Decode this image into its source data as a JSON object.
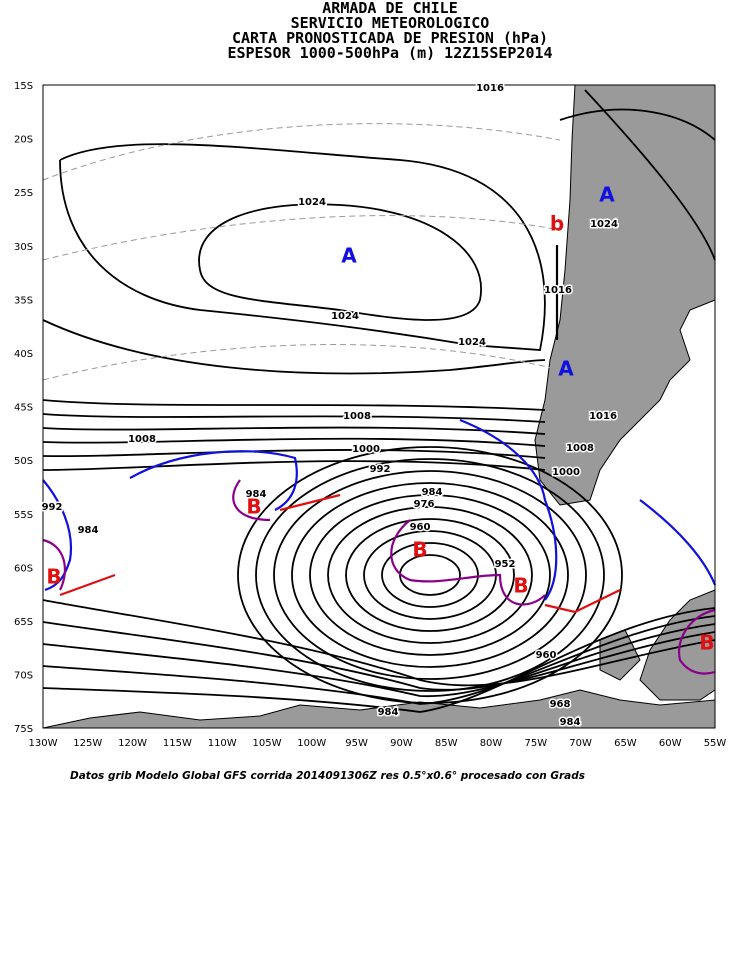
{
  "header": {
    "lines": [
      "ARMADA DE CHILE",
      "SERVICIO METEOROLOGICO",
      "CARTA PRONOSTICADA DE PRESION (hPa)",
      "ESPESOR 1000-500hPa (m) 12Z15SEP2014"
    ]
  },
  "map": {
    "lat_labels": [
      "15S",
      "20S",
      "25S",
      "30S",
      "35S",
      "40S",
      "45S",
      "50S",
      "55S",
      "60S",
      "65S",
      "70S",
      "75S"
    ],
    "lon_labels": [
      "130W",
      "125W",
      "120W",
      "115W",
      "110W",
      "105W",
      "100W",
      "95W",
      "90W",
      "85W",
      "80W",
      "75W",
      "70W",
      "65W",
      "60W",
      "55W"
    ],
    "isobar_labels": [
      "1016",
      "1024",
      "1024",
      "1016",
      "1024",
      "1024",
      "1008",
      "1016",
      "1008",
      "1000",
      "1008",
      "992",
      "1000",
      "984",
      "976",
      "984",
      "992",
      "984",
      "960",
      "952",
      "960",
      "968",
      "984",
      "984"
    ],
    "highs": [
      "A",
      "A",
      "A"
    ],
    "lows": [
      "B",
      "B",
      "B",
      "B",
      "B"
    ],
    "minor_low": "b"
  },
  "footer": "Datos grib Modelo Global GFS corrida 2014091306Z res 0.5°x0.6° procesado con Grads"
}
